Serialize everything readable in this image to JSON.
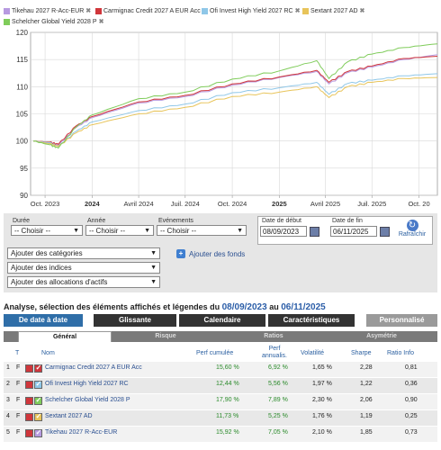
{
  "legend": [
    {
      "label": "Tikehau 2027 R-Acc-EUR",
      "color": "#b79ae0"
    },
    {
      "label": "Carmignac Credit 2027 A EUR Acc",
      "color": "#d0363b"
    },
    {
      "label": "Ofi Invest High Yield 2027 RC",
      "color": "#8fc7e8"
    },
    {
      "label": "Sextant 2027 AD",
      "color": "#e8c45a"
    },
    {
      "label": "Schelcher Global Yield 2028 P",
      "color": "#7fcc5a"
    }
  ],
  "remove_symbol": "✖",
  "chart_data": {
    "type": "line",
    "y_ticks": [
      90,
      95,
      100,
      105,
      110,
      115,
      120
    ],
    "ylim": [
      90,
      120
    ],
    "x_ticks": [
      {
        "label": "Oct. 2023",
        "bold": false
      },
      {
        "label": "2024",
        "bold": true
      },
      {
        "label": "Avril 2024",
        "bold": false
      },
      {
        "label": "Juil. 2024",
        "bold": false
      },
      {
        "label": "Oct. 2024",
        "bold": false
      },
      {
        "label": "2025",
        "bold": true
      },
      {
        "label": "Avril 2025",
        "bold": false
      },
      {
        "label": "Juil. 2025",
        "bold": false
      },
      {
        "label": "Oct. 20",
        "bold": false
      }
    ],
    "x_tick_dates": [
      "2023-10-01",
      "2024-01-01",
      "2024-04-01",
      "2024-07-01",
      "2024-10-01",
      "2025-01-01",
      "2025-04-01",
      "2025-07-01",
      "2025-10-01"
    ],
    "xlim": [
      "2023-09-08",
      "2025-11-06"
    ],
    "grid": true,
    "series": [
      {
        "name": "Tikehau 2027 R-Acc-EUR",
        "color": "#b79ae0",
        "points": [
          [
            "2023-09-08",
            100
          ],
          [
            "2023-10-10",
            99.6
          ],
          [
            "2023-10-27",
            99.2
          ],
          [
            "2023-12-01",
            102.5
          ],
          [
            "2024-01-01",
            104.3
          ],
          [
            "2024-04-01",
            107.0
          ],
          [
            "2024-07-01",
            108.2
          ],
          [
            "2024-10-01",
            110.3
          ],
          [
            "2025-01-01",
            111.7
          ],
          [
            "2025-03-15",
            112.8
          ],
          [
            "2025-04-08",
            110.5
          ],
          [
            "2025-05-15",
            112.6
          ],
          [
            "2025-07-01",
            113.6
          ],
          [
            "2025-09-01",
            115.0
          ],
          [
            "2025-11-06",
            115.9
          ]
        ]
      },
      {
        "name": "Carmignac Credit 2027 A EUR Acc",
        "color": "#d0363b",
        "points": [
          [
            "2023-09-08",
            100
          ],
          [
            "2023-10-10",
            99.8
          ],
          [
            "2023-10-27",
            99.4
          ],
          [
            "2023-12-01",
            102.8
          ],
          [
            "2024-01-01",
            104.5
          ],
          [
            "2024-04-01",
            107.2
          ],
          [
            "2024-07-01",
            108.4
          ],
          [
            "2024-10-01",
            110.5
          ],
          [
            "2025-01-01",
            111.8
          ],
          [
            "2025-03-15",
            113.0
          ],
          [
            "2025-04-08",
            110.8
          ],
          [
            "2025-05-15",
            112.8
          ],
          [
            "2025-07-01",
            113.8
          ],
          [
            "2025-09-01",
            115.2
          ],
          [
            "2025-11-06",
            115.6
          ]
        ]
      },
      {
        "name": "Ofi Invest High Yield 2027 RC",
        "color": "#8fc7e8",
        "points": [
          [
            "2023-09-08",
            100
          ],
          [
            "2023-10-10",
            99.7
          ],
          [
            "2023-10-27",
            99.0
          ],
          [
            "2023-12-01",
            101.8
          ],
          [
            "2024-01-01",
            103.5
          ],
          [
            "2024-04-01",
            105.6
          ],
          [
            "2024-07-01",
            106.8
          ],
          [
            "2024-10-01",
            108.9
          ],
          [
            "2025-01-01",
            109.8
          ],
          [
            "2025-03-15",
            110.8
          ],
          [
            "2025-04-08",
            108.6
          ],
          [
            "2025-05-15",
            110.6
          ],
          [
            "2025-07-01",
            111.2
          ],
          [
            "2025-09-01",
            112.0
          ],
          [
            "2025-11-06",
            112.4
          ]
        ]
      },
      {
        "name": "Sextant 2027 AD",
        "color": "#e8c45a",
        "points": [
          [
            "2023-09-08",
            100
          ],
          [
            "2023-10-10",
            99.5
          ],
          [
            "2023-10-27",
            99.0
          ],
          [
            "2023-12-01",
            101.5
          ],
          [
            "2024-01-01",
            103.0
          ],
          [
            "2024-04-01",
            105.0
          ],
          [
            "2024-07-01",
            106.2
          ],
          [
            "2024-10-01",
            108.2
          ],
          [
            "2025-01-01",
            109.0
          ],
          [
            "2025-03-15",
            110.0
          ],
          [
            "2025-04-08",
            108.0
          ],
          [
            "2025-05-15",
            110.0
          ],
          [
            "2025-07-01",
            110.8
          ],
          [
            "2025-09-01",
            111.5
          ],
          [
            "2025-11-06",
            111.7
          ]
        ]
      },
      {
        "name": "Schelcher Global Yield 2028 P",
        "color": "#7fcc5a",
        "points": [
          [
            "2023-09-08",
            100
          ],
          [
            "2023-10-10",
            99.3
          ],
          [
            "2023-10-27",
            98.7
          ],
          [
            "2023-12-01",
            102.6
          ],
          [
            "2024-01-01",
            104.8
          ],
          [
            "2024-04-01",
            107.8
          ],
          [
            "2024-07-01",
            109.0
          ],
          [
            "2024-10-01",
            111.4
          ],
          [
            "2025-01-01",
            112.9
          ],
          [
            "2025-03-15",
            114.8
          ],
          [
            "2025-04-08",
            111.5
          ],
          [
            "2025-05-15",
            114.6
          ],
          [
            "2025-07-01",
            116.0
          ],
          [
            "2025-09-01",
            117.2
          ],
          [
            "2025-11-06",
            117.9
          ]
        ]
      }
    ]
  },
  "controls": {
    "duree_label": "Durée",
    "annee_label": "Année",
    "evenements_label": "Evénements",
    "choisir": "-- Choisir --",
    "date_debut_label": "Date de début",
    "date_fin_label": "Date de fin",
    "date_debut": "08/09/2023",
    "date_fin": "06/11/2025",
    "refresh_label": "Rafraîchir",
    "categories": "Ajouter des catégories",
    "indices": "Ajouter des indices",
    "allocations": "Ajouter des allocations d'actifs",
    "add_funds": "Ajouter des fonds"
  },
  "summary": {
    "text": "Analyse, sélection des éléments affichés et légendes du",
    "start": "08/09/2023",
    "au": "au",
    "end": "06/11/2025"
  },
  "tabs": [
    {
      "label": "De date à date",
      "color": "#2f6ea8"
    },
    {
      "label": "Glissante",
      "color": "#333333"
    },
    {
      "label": "Calendaire",
      "color": "#333333"
    },
    {
      "label": "Caractéristiques",
      "color": "#333333"
    },
    {
      "label": "Personnalisé",
      "color": "#9a9a9a"
    }
  ],
  "subtabs": [
    "Général",
    "Risque",
    "Ratios",
    "Asymétrie"
  ],
  "table": {
    "headers": {
      "t": "T",
      "nom": "Nom",
      "perf": "Perf cumulée",
      "perf_ann": "Perf annualis.",
      "vol": "Volatilité",
      "sharpe": "Sharpe",
      "ratio": "Ratio Info"
    },
    "rows": [
      {
        "n": "1",
        "t": "F",
        "color": "#d0363b",
        "name": "Carmignac Credit 2027 A EUR Acc",
        "perf": "15,60 %",
        "perf_ann": "6,92 %",
        "vol": "1,65 %",
        "sharpe": "2,28",
        "ratio": "0,81"
      },
      {
        "n": "2",
        "t": "F",
        "color": "#8fc7e8",
        "name": "Ofi Invest High Yield 2027 RC",
        "perf": "12,44 %",
        "perf_ann": "5,56 %",
        "vol": "1,97 %",
        "sharpe": "1,22",
        "ratio": "0,36"
      },
      {
        "n": "3",
        "t": "F",
        "color": "#7fcc5a",
        "name": "Schelcher Global Yield 2028 P",
        "perf": "17,90 %",
        "perf_ann": "7,89 %",
        "vol": "2,30 %",
        "sharpe": "2,06",
        "ratio": "0,90"
      },
      {
        "n": "4",
        "t": "F",
        "color": "#e8c45a",
        "name": "Sextant 2027 AD",
        "perf": "11,73 %",
        "perf_ann": "5,25 %",
        "vol": "1,76 %",
        "sharpe": "1,19",
        "ratio": "0,25"
      },
      {
        "n": "5",
        "t": "F",
        "color": "#b79ae0",
        "name": "Tikehau 2027 R-Acc-EUR",
        "perf": "15,92 %",
        "perf_ann": "7,05 %",
        "vol": "2,10 %",
        "sharpe": "1,85",
        "ratio": "0,73"
      }
    ]
  }
}
